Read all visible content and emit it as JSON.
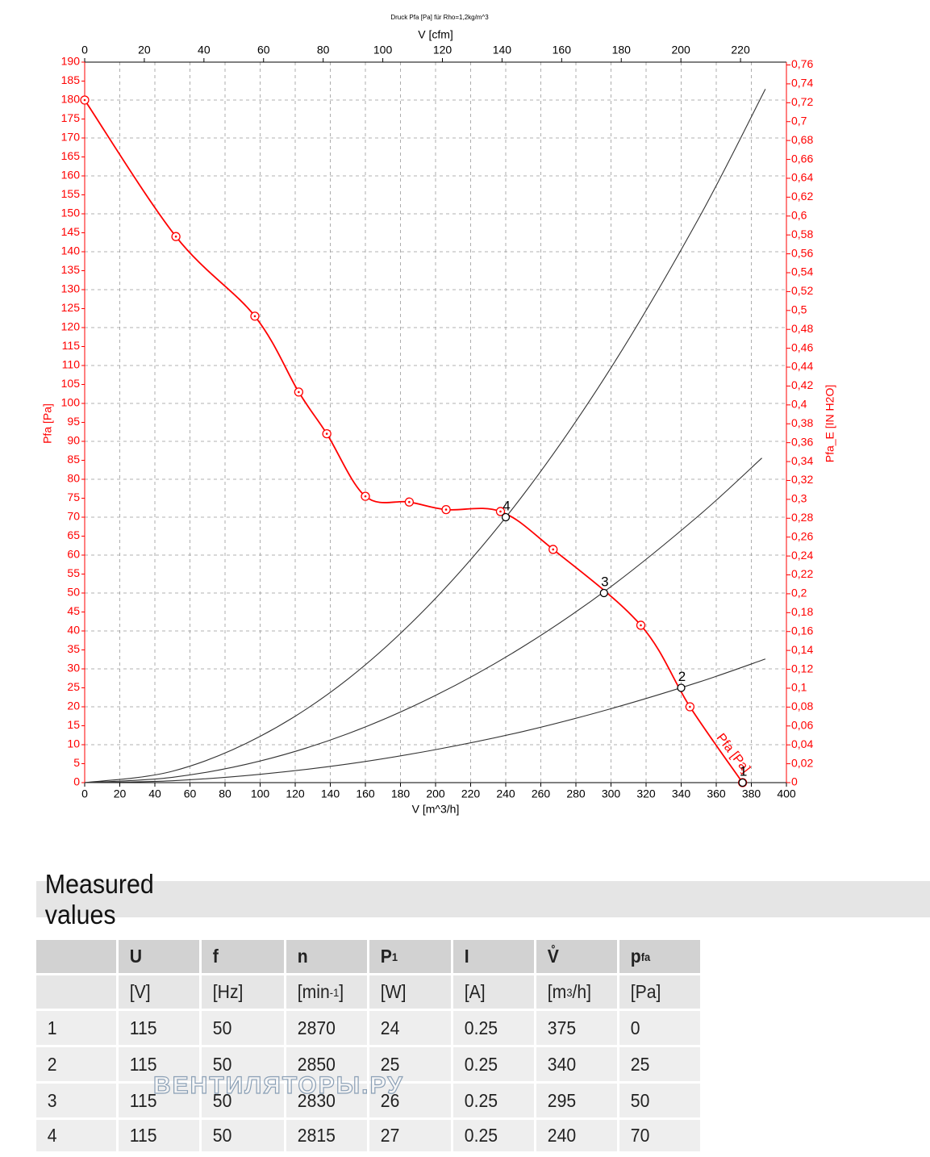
{
  "chart_data": {
    "type": "line",
    "title": "Druck Pfa [Pa] für Rho=1,2kg/m^3",
    "x_label": "V [m^3/h]",
    "x2_label": "V [cfm]",
    "y_label": "Pfa [Pa]",
    "y2_label": "Pfa_E [IN H2O]",
    "xlim": [
      0,
      400
    ],
    "xticks": [
      0,
      20,
      40,
      60,
      80,
      100,
      120,
      140,
      160,
      180,
      200,
      220,
      240,
      260,
      280,
      300,
      320,
      340,
      360,
      380,
      400
    ],
    "x2lim": [
      0,
      235.4
    ],
    "x2ticks": [
      0,
      20,
      40,
      60,
      80,
      100,
      120,
      140,
      160,
      180,
      200,
      220
    ],
    "ylim": [
      0,
      190
    ],
    "yticks": [
      0,
      5,
      10,
      15,
      20,
      25,
      30,
      35,
      40,
      45,
      50,
      55,
      60,
      65,
      70,
      75,
      80,
      85,
      90,
      95,
      100,
      105,
      110,
      115,
      120,
      125,
      130,
      135,
      140,
      145,
      150,
      155,
      160,
      165,
      170,
      175,
      180,
      185,
      190
    ],
    "y2lim": [
      0,
      0.763
    ],
    "y2ticks": [
      0,
      {
        "value": 0.02,
        "label": "0,02"
      },
      {
        "value": 0.04,
        "label": "0,04"
      },
      {
        "value": 0.06,
        "label": "0,06"
      },
      {
        "value": 0.08,
        "label": "0,08"
      },
      {
        "value": 0.1,
        "label": "0,1"
      },
      {
        "value": 0.12,
        "label": "0,12"
      },
      {
        "value": 0.14,
        "label": "0,14"
      },
      {
        "value": 0.16,
        "label": "0,16"
      },
      {
        "value": 0.18,
        "label": "0,18"
      },
      {
        "value": 0.2,
        "label": "0,2"
      },
      {
        "value": 0.22,
        "label": "0,22"
      },
      {
        "value": 0.24,
        "label": "0,24"
      },
      {
        "value": 0.26,
        "label": "0,26"
      },
      {
        "value": 0.28,
        "label": "0,28"
      },
      {
        "value": 0.3,
        "label": "0,3"
      },
      {
        "value": 0.32,
        "label": "0,32"
      },
      {
        "value": 0.34,
        "label": "0,34"
      },
      {
        "value": 0.36,
        "label": "0,36"
      },
      {
        "value": 0.38,
        "label": "0,38"
      },
      {
        "value": 0.4,
        "label": "0,4"
      },
      {
        "value": 0.42,
        "label": "0,42"
      },
      {
        "value": 0.44,
        "label": "0,44"
      },
      {
        "value": 0.46,
        "label": "0,46"
      },
      {
        "value": 0.48,
        "label": "0,48"
      },
      {
        "value": 0.5,
        "label": "0,5"
      },
      {
        "value": 0.52,
        "label": "0,52"
      },
      {
        "value": 0.54,
        "label": "0,54"
      },
      {
        "value": 0.56,
        "label": "0,56"
      },
      {
        "value": 0.58,
        "label": "0,58"
      },
      {
        "value": 0.6,
        "label": "0,6"
      },
      {
        "value": 0.62,
        "label": "0,62"
      },
      {
        "value": 0.64,
        "label": "0,64"
      },
      {
        "value": 0.66,
        "label": "0,66"
      },
      {
        "value": 0.68,
        "label": "0,68"
      },
      {
        "value": 0.7,
        "label": "0,7"
      },
      {
        "value": 0.72,
        "label": "0,72"
      },
      {
        "value": 0.74,
        "label": "0,74"
      },
      {
        "value": 0.76,
        "label": "0,76"
      }
    ],
    "grid": true,
    "series": [
      {
        "name": "Pfa [Pa]",
        "color": "#ff0000",
        "markers": true,
        "x": [
          0,
          52,
          97,
          122,
          138,
          160,
          185,
          206,
          237,
          267,
          317,
          345,
          375
        ],
        "values": [
          180,
          144,
          123,
          103,
          92,
          75.5,
          74,
          72,
          71.5,
          61.5,
          41.5,
          20,
          0
        ]
      },
      {
        "color": "#333333",
        "x": [
          0,
          50,
          100,
          150,
          200,
          250,
          300,
          350,
          388
        ],
        "values": [
          0,
          3,
          12.2,
          27.3,
          48.6,
          75.9,
          109.4,
          148.8,
          182.9
        ]
      },
      {
        "color": "#333333",
        "x": [
          0,
          50,
          100,
          150,
          200,
          250,
          300,
          350,
          386
        ],
        "values": [
          0,
          1.4,
          5.7,
          12.9,
          23,
          35.9,
          51.7,
          70.4,
          85.6
        ]
      },
      {
        "color": "#333333",
        "x": [
          0,
          50,
          100,
          150,
          200,
          250,
          300,
          350,
          388
        ],
        "values": [
          0,
          0.5,
          2.2,
          4.9,
          8.7,
          13.5,
          19.5,
          26.5,
          32.6
        ]
      }
    ],
    "operating_points": {
      "color": "#000000",
      "labels": [
        "1",
        "2",
        "3",
        "4"
      ],
      "x": [
        375,
        340,
        296,
        240
      ],
      "values": [
        0,
        25,
        50,
        70
      ]
    }
  },
  "table": {
    "title": "Measured values",
    "header": [
      [
        {
          "t": "U"
        }
      ],
      [
        {
          "t": "f"
        }
      ],
      [
        {
          "t": "n"
        }
      ],
      [
        {
          "t": "P"
        },
        {
          "t": "1",
          "s": "sub"
        }
      ],
      [
        {
          "t": "I"
        }
      ],
      [
        {
          "t": "V̊"
        }
      ],
      [
        {
          "t": "p"
        },
        {
          "t": "fa",
          "s": "sub"
        }
      ]
    ],
    "units": [
      [
        {
          "t": "[V]"
        }
      ],
      [
        {
          "t": "[Hz]"
        }
      ],
      [
        {
          "t": "[min"
        },
        {
          "t": "-1",
          "s": "sup"
        },
        {
          "t": "]"
        }
      ],
      [
        {
          "t": "[W]"
        }
      ],
      [
        {
          "t": "[A]"
        }
      ],
      [
        {
          "t": "[m"
        },
        {
          "t": "3",
          "s": "sup"
        },
        {
          "t": "/h]"
        }
      ],
      [
        {
          "t": "[Pa]"
        }
      ]
    ],
    "rows": [
      [
        1,
        115,
        50,
        2870,
        24,
        0.25,
        375,
        0
      ],
      [
        2,
        115,
        50,
        2850,
        25,
        0.25,
        340,
        25
      ],
      [
        3,
        115,
        50,
        2830,
        26,
        0.25,
        295,
        50
      ],
      [
        4,
        115,
        50,
        2815,
        27,
        0.25,
        240,
        70
      ]
    ]
  },
  "watermark": "ВЕНТИЛЯТОРЫ.РУ"
}
